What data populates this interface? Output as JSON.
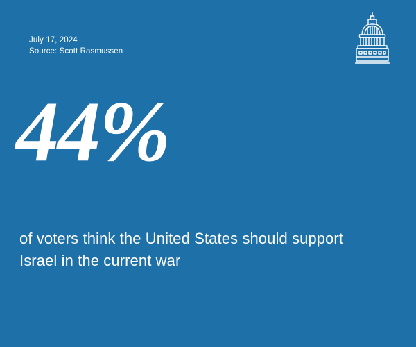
{
  "date": "July 17, 2024",
  "source": "Source: Scott Rasmussen",
  "statistic": "44%",
  "statement_line1": "of voters think the United States should support",
  "statement_line2": "Israel in the current war",
  "logo_icon": "capitol-dome-icon",
  "colors": {
    "background": "#1e70a8",
    "text": "#ffffff"
  }
}
